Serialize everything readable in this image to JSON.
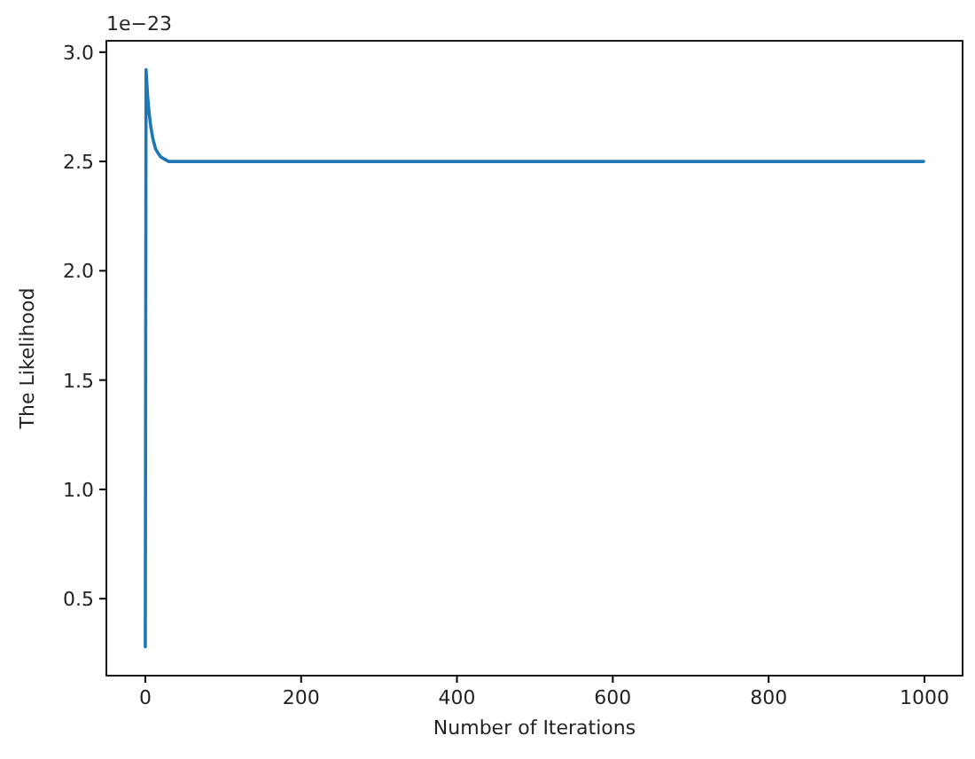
{
  "chart_data": {
    "type": "line",
    "xlabel": "Number of Iterations",
    "ylabel": "The Likelihood",
    "annotations": [
      "1e−23"
    ],
    "series": [
      {
        "color": "#1f77b4",
        "x": [
          0,
          1,
          2,
          3,
          5,
          7,
          10,
          13,
          16,
          20,
          25,
          30,
          40,
          50,
          100,
          200,
          400,
          600,
          800,
          999
        ],
        "values": [
          0.28,
          2.92,
          2.86,
          2.8,
          2.72,
          2.66,
          2.6,
          2.56,
          2.54,
          2.52,
          2.51,
          2.5,
          2.5,
          2.5,
          2.5,
          2.5,
          2.5,
          2.5,
          2.5,
          2.5
        ]
      }
    ],
    "xlim": [
      -49.95,
      1048.95
    ],
    "ylim": [
      0.148,
      3.052
    ],
    "xticks": [
      0,
      200,
      400,
      600,
      800,
      1000
    ],
    "yticks": [
      0.5,
      {
        "value": 1,
        "label": "1.0"
      },
      1.5,
      {
        "value": 2,
        "label": "2.0"
      },
      2.5,
      {
        "value": 3,
        "label": "3.0"
      }
    ],
    "grid": false
  }
}
